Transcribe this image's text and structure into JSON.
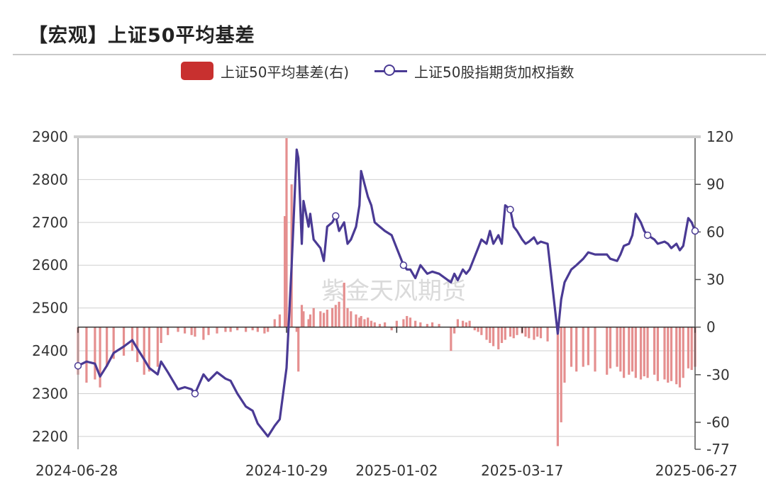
{
  "title": "【宏观】上证50平均基差",
  "watermark": "紫金天风期货",
  "legend": {
    "bar_label": "上证50平均基差(右)",
    "line_label": "上证50股指期货加权指数"
  },
  "colors": {
    "bar": "#e58f8f",
    "line": "#4a3a94",
    "legend_bar": "#c8302f"
  },
  "chart_data": {
    "type": "bar+line",
    "title": "【宏观】上证50平均基差",
    "x_ticks": [
      "2024-06-28",
      "2024-10-29",
      "2025-01-02",
      "2025-03-17",
      "2025-06-27"
    ],
    "x_range": [
      "2024-06-28",
      "2025-06-27"
    ],
    "y_left": {
      "range": [
        2170,
        2900
      ],
      "ticks": [
        2200,
        2300,
        2400,
        2500,
        2600,
        2700,
        2800,
        2900
      ]
    },
    "y_right": {
      "range": [
        -77,
        120
      ],
      "ticks": [
        -77,
        -60,
        -30,
        0,
        30,
        60,
        90,
        120
      ]
    },
    "grid": true,
    "legend_position": "top",
    "series": [
      {
        "name": "上证50股指期货加权指数",
        "type": "line",
        "axis": "left",
        "points": [
          [
            "2024-06-28",
            2365
          ],
          [
            "2024-07-03",
            2375
          ],
          [
            "2024-07-08",
            2370
          ],
          [
            "2024-07-11",
            2340
          ],
          [
            "2024-07-15",
            2365
          ],
          [
            "2024-07-19",
            2395
          ],
          [
            "2024-07-25",
            2410
          ],
          [
            "2024-07-30",
            2425
          ],
          [
            "2024-08-02",
            2405
          ],
          [
            "2024-08-06",
            2380
          ],
          [
            "2024-08-09",
            2360
          ],
          [
            "2024-08-14",
            2345
          ],
          [
            "2024-08-16",
            2375
          ],
          [
            "2024-08-20",
            2350
          ],
          [
            "2024-08-26",
            2310
          ],
          [
            "2024-08-30",
            2315
          ],
          [
            "2024-09-03",
            2310
          ],
          [
            "2024-09-05",
            2300
          ],
          [
            "2024-09-10",
            2345
          ],
          [
            "2024-09-13",
            2330
          ],
          [
            "2024-09-18",
            2350
          ],
          [
            "2024-09-23",
            2335
          ],
          [
            "2024-09-26",
            2330
          ],
          [
            "2024-09-30",
            2300
          ],
          [
            "2024-10-05",
            2270
          ],
          [
            "2024-10-09",
            2260
          ],
          [
            "2024-10-12",
            2230
          ],
          [
            "2024-10-16",
            2210
          ],
          [
            "2024-10-18",
            2200
          ],
          [
            "2024-10-22",
            2225
          ],
          [
            "2024-10-25",
            2240
          ],
          [
            "2024-10-28",
            2330
          ],
          [
            "2024-10-29",
            2360
          ],
          [
            "2024-11-01",
            2600
          ],
          [
            "2024-11-04",
            2870
          ],
          [
            "2024-11-05",
            2850
          ],
          [
            "2024-11-07",
            2650
          ],
          [
            "2024-11-08",
            2750
          ],
          [
            "2024-11-11",
            2690
          ],
          [
            "2024-11-12",
            2720
          ],
          [
            "2024-11-14",
            2660
          ],
          [
            "2024-11-18",
            2640
          ],
          [
            "2024-11-20",
            2610
          ],
          [
            "2024-11-22",
            2690
          ],
          [
            "2024-11-25",
            2700
          ],
          [
            "2024-11-27",
            2715
          ],
          [
            "2024-11-29",
            2680
          ],
          [
            "2024-12-02",
            2700
          ],
          [
            "2024-12-04",
            2650
          ],
          [
            "2024-12-06",
            2660
          ],
          [
            "2024-12-09",
            2690
          ],
          [
            "2024-12-11",
            2740
          ],
          [
            "2024-12-12",
            2820
          ],
          [
            "2024-12-14",
            2790
          ],
          [
            "2024-12-16",
            2760
          ],
          [
            "2024-12-18",
            2740
          ],
          [
            "2024-12-20",
            2700
          ],
          [
            "2024-12-23",
            2690
          ],
          [
            "2024-12-26",
            2680
          ],
          [
            "2024-12-30",
            2670
          ],
          [
            "2025-01-02",
            2640
          ],
          [
            "2025-01-06",
            2600
          ],
          [
            "2025-01-08",
            2590
          ],
          [
            "2025-01-10",
            2590
          ],
          [
            "2025-01-13",
            2570
          ],
          [
            "2025-01-16",
            2600
          ],
          [
            "2025-01-20",
            2580
          ],
          [
            "2025-01-23",
            2585
          ],
          [
            "2025-01-27",
            2580
          ],
          [
            "2025-02-03",
            2560
          ],
          [
            "2025-02-05",
            2580
          ],
          [
            "2025-02-07",
            2565
          ],
          [
            "2025-02-10",
            2590
          ],
          [
            "2025-02-12",
            2580
          ],
          [
            "2025-02-14",
            2590
          ],
          [
            "2025-02-17",
            2620
          ],
          [
            "2025-02-19",
            2640
          ],
          [
            "2025-02-21",
            2660
          ],
          [
            "2025-02-24",
            2650
          ],
          [
            "2025-02-26",
            2680
          ],
          [
            "2025-02-28",
            2650
          ],
          [
            "2025-03-03",
            2670
          ],
          [
            "2025-03-05",
            2650
          ],
          [
            "2025-03-07",
            2740
          ],
          [
            "2025-03-10",
            2730
          ],
          [
            "2025-03-12",
            2690
          ],
          [
            "2025-03-14",
            2680
          ],
          [
            "2025-03-17",
            2660
          ],
          [
            "2025-03-19",
            2650
          ],
          [
            "2025-03-21",
            2655
          ],
          [
            "2025-03-24",
            2665
          ],
          [
            "2025-03-26",
            2650
          ],
          [
            "2025-03-28",
            2655
          ],
          [
            "2025-04-01",
            2650
          ],
          [
            "2025-04-07",
            2440
          ],
          [
            "2025-04-09",
            2520
          ],
          [
            "2025-04-11",
            2560
          ],
          [
            "2025-04-15",
            2590
          ],
          [
            "2025-04-18",
            2600
          ],
          [
            "2025-04-22",
            2615
          ],
          [
            "2025-04-25",
            2630
          ],
          [
            "2025-04-29",
            2625
          ],
          [
            "2025-05-06",
            2625
          ],
          [
            "2025-05-08",
            2615
          ],
          [
            "2025-05-12",
            2610
          ],
          [
            "2025-05-14",
            2625
          ],
          [
            "2025-05-16",
            2645
          ],
          [
            "2025-05-19",
            2650
          ],
          [
            "2025-05-21",
            2670
          ],
          [
            "2025-05-23",
            2720
          ],
          [
            "2025-05-26",
            2700
          ],
          [
            "2025-05-28",
            2680
          ],
          [
            "2025-05-30",
            2670
          ],
          [
            "2025-06-03",
            2660
          ],
          [
            "2025-06-05",
            2650
          ],
          [
            "2025-06-09",
            2655
          ],
          [
            "2025-06-11",
            2650
          ],
          [
            "2025-06-13",
            2640
          ],
          [
            "2025-06-16",
            2650
          ],
          [
            "2025-06-18",
            2635
          ],
          [
            "2025-06-20",
            2645
          ],
          [
            "2025-06-23",
            2710
          ],
          [
            "2025-06-25",
            2700
          ],
          [
            "2025-06-27",
            2680
          ]
        ]
      },
      {
        "name": "上证50平均基差(右)",
        "type": "bar",
        "axis": "right",
        "points": [
          [
            "2024-06-28",
            -30
          ],
          [
            "2024-07-03",
            -35
          ],
          [
            "2024-07-08",
            -33
          ],
          [
            "2024-07-11",
            -38
          ],
          [
            "2024-07-15",
            -25
          ],
          [
            "2024-07-19",
            -20
          ],
          [
            "2024-07-25",
            -18
          ],
          [
            "2024-07-30",
            -15
          ],
          [
            "2024-08-02",
            -22
          ],
          [
            "2024-08-06",
            -30
          ],
          [
            "2024-08-09",
            -28
          ],
          [
            "2024-08-14",
            -25
          ],
          [
            "2024-08-16",
            -10
          ],
          [
            "2024-08-20",
            -5
          ],
          [
            "2024-08-26",
            -3
          ],
          [
            "2024-08-30",
            -4
          ],
          [
            "2024-09-03",
            -5
          ],
          [
            "2024-09-05",
            -6
          ],
          [
            "2024-09-10",
            -8
          ],
          [
            "2024-09-13",
            -5
          ],
          [
            "2024-09-18",
            -4
          ],
          [
            "2024-09-23",
            -3
          ],
          [
            "2024-09-26",
            -3
          ],
          [
            "2024-09-30",
            -2
          ],
          [
            "2024-10-05",
            -3
          ],
          [
            "2024-10-09",
            -2
          ],
          [
            "2024-10-12",
            -3
          ],
          [
            "2024-10-16",
            -4
          ],
          [
            "2024-10-18",
            -3
          ],
          [
            "2024-10-22",
            5
          ],
          [
            "2024-10-25",
            8
          ],
          [
            "2024-10-28",
            70
          ],
          [
            "2024-10-29",
            120
          ],
          [
            "2024-11-01",
            90
          ],
          [
            "2024-11-04",
            -3
          ],
          [
            "2024-11-05",
            -28
          ],
          [
            "2024-11-07",
            14
          ],
          [
            "2024-11-08",
            10
          ],
          [
            "2024-11-11",
            5
          ],
          [
            "2024-11-12",
            8
          ],
          [
            "2024-11-14",
            12
          ],
          [
            "2024-11-18",
            10
          ],
          [
            "2024-11-20",
            9
          ],
          [
            "2024-11-22",
            11
          ],
          [
            "2024-11-25",
            12
          ],
          [
            "2024-11-27",
            14
          ],
          [
            "2024-11-29",
            16
          ],
          [
            "2024-12-02",
            28
          ],
          [
            "2024-12-04",
            12
          ],
          [
            "2024-12-06",
            10
          ],
          [
            "2024-12-09",
            8
          ],
          [
            "2024-12-11",
            6
          ],
          [
            "2024-12-12",
            7
          ],
          [
            "2024-12-14",
            5
          ],
          [
            "2024-12-16",
            6
          ],
          [
            "2024-12-18",
            4
          ],
          [
            "2024-12-20",
            3
          ],
          [
            "2024-12-23",
            2
          ],
          [
            "2024-12-26",
            3
          ],
          [
            "2024-12-30",
            -2
          ],
          [
            "2025-01-02",
            4
          ],
          [
            "2025-01-06",
            5
          ],
          [
            "2025-01-08",
            7
          ],
          [
            "2025-01-10",
            6
          ],
          [
            "2025-01-13",
            4
          ],
          [
            "2025-01-16",
            3
          ],
          [
            "2025-01-20",
            2
          ],
          [
            "2025-01-23",
            3
          ],
          [
            "2025-01-27",
            2
          ],
          [
            "2025-02-03",
            -15
          ],
          [
            "2025-02-05",
            -4
          ],
          [
            "2025-02-07",
            5
          ],
          [
            "2025-02-10",
            4
          ],
          [
            "2025-02-12",
            3
          ],
          [
            "2025-02-14",
            4
          ],
          [
            "2025-02-17",
            -2
          ],
          [
            "2025-02-19",
            -3
          ],
          [
            "2025-02-21",
            -5
          ],
          [
            "2025-02-24",
            -8
          ],
          [
            "2025-02-26",
            -10
          ],
          [
            "2025-02-28",
            -12
          ],
          [
            "2025-03-03",
            -14
          ],
          [
            "2025-03-05",
            -10
          ],
          [
            "2025-03-07",
            -8
          ],
          [
            "2025-03-10",
            -6
          ],
          [
            "2025-03-12",
            -7
          ],
          [
            "2025-03-14",
            -5
          ],
          [
            "2025-03-17",
            -4
          ],
          [
            "2025-03-19",
            -6
          ],
          [
            "2025-03-21",
            -7
          ],
          [
            "2025-03-24",
            -8
          ],
          [
            "2025-03-26",
            -6
          ],
          [
            "2025-03-28",
            -7
          ],
          [
            "2025-04-01",
            -9
          ],
          [
            "2025-04-07",
            -75
          ],
          [
            "2025-04-09",
            -60
          ],
          [
            "2025-04-11",
            -35
          ],
          [
            "2025-04-15",
            -25
          ],
          [
            "2025-04-18",
            -28
          ],
          [
            "2025-04-22",
            -25
          ],
          [
            "2025-04-25",
            -24
          ],
          [
            "2025-04-29",
            -28
          ],
          [
            "2025-05-06",
            -30
          ],
          [
            "2025-05-08",
            -26
          ],
          [
            "2025-05-12",
            -25
          ],
          [
            "2025-05-14",
            -28
          ],
          [
            "2025-05-16",
            -32
          ],
          [
            "2025-05-19",
            -30
          ],
          [
            "2025-05-21",
            -28
          ],
          [
            "2025-05-23",
            -32
          ],
          [
            "2025-05-26",
            -33
          ],
          [
            "2025-05-28",
            -31
          ],
          [
            "2025-05-30",
            -32
          ],
          [
            "2025-06-03",
            -30
          ],
          [
            "2025-06-05",
            -34
          ],
          [
            "2025-06-09",
            -33
          ],
          [
            "2025-06-11",
            -35
          ],
          [
            "2025-06-13",
            -34
          ],
          [
            "2025-06-16",
            -36
          ],
          [
            "2025-06-18",
            -38
          ],
          [
            "2025-06-20",
            -32
          ],
          [
            "2025-06-23",
            -26
          ],
          [
            "2025-06-25",
            -27
          ],
          [
            "2025-06-27",
            -25
          ]
        ]
      }
    ],
    "line_markers": [
      "2024-06-28",
      "2024-09-05",
      "2024-11-27",
      "2025-01-06",
      "2025-03-10",
      "2025-05-30",
      "2025-06-27"
    ]
  }
}
